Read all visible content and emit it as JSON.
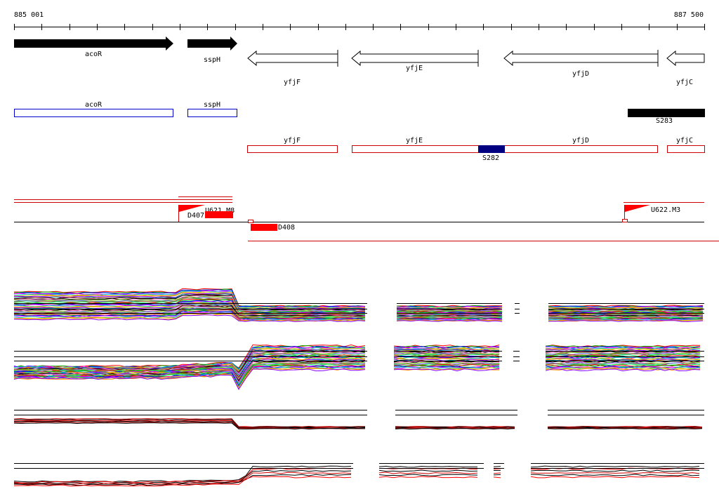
{
  "coords": {
    "start": "885 001",
    "end": "887 500"
  },
  "genes_arrow": [
    {
      "name": "acoR",
      "strand": "+"
    },
    {
      "name": "sspH",
      "strand": "+"
    },
    {
      "name": "yfjF",
      "strand": "-"
    },
    {
      "name": "yfjE",
      "strand": "-"
    },
    {
      "name": "yfjD",
      "strand": "-"
    },
    {
      "name": "yfjC",
      "strand": "-"
    }
  ],
  "features": {
    "s283": "S283",
    "s282": "S282"
  },
  "transcripts": {
    "u621": "U621.M8",
    "d407": "D407",
    "u622": "U622.M3",
    "d408": "D408"
  },
  "colors": {
    "forward_gene": "#000000",
    "blue_track": "#0000cc",
    "red_track": "#cc0000",
    "transcript_red": "#ff0000",
    "s282_fill": "#000080",
    "profile_palette": [
      "#ff0000",
      "#00aa00",
      "#0000ff",
      "#ff00ff",
      "#00cccc",
      "#cccc00",
      "#ff8800",
      "#8800ff",
      "#008888",
      "#880000",
      "#000000",
      "#ff66cc",
      "#66cc00",
      "#6666ff",
      "#996633",
      "#00ff66"
    ]
  },
  "icons": {
    "transcript_start_flag": "red-flag-icon"
  }
}
